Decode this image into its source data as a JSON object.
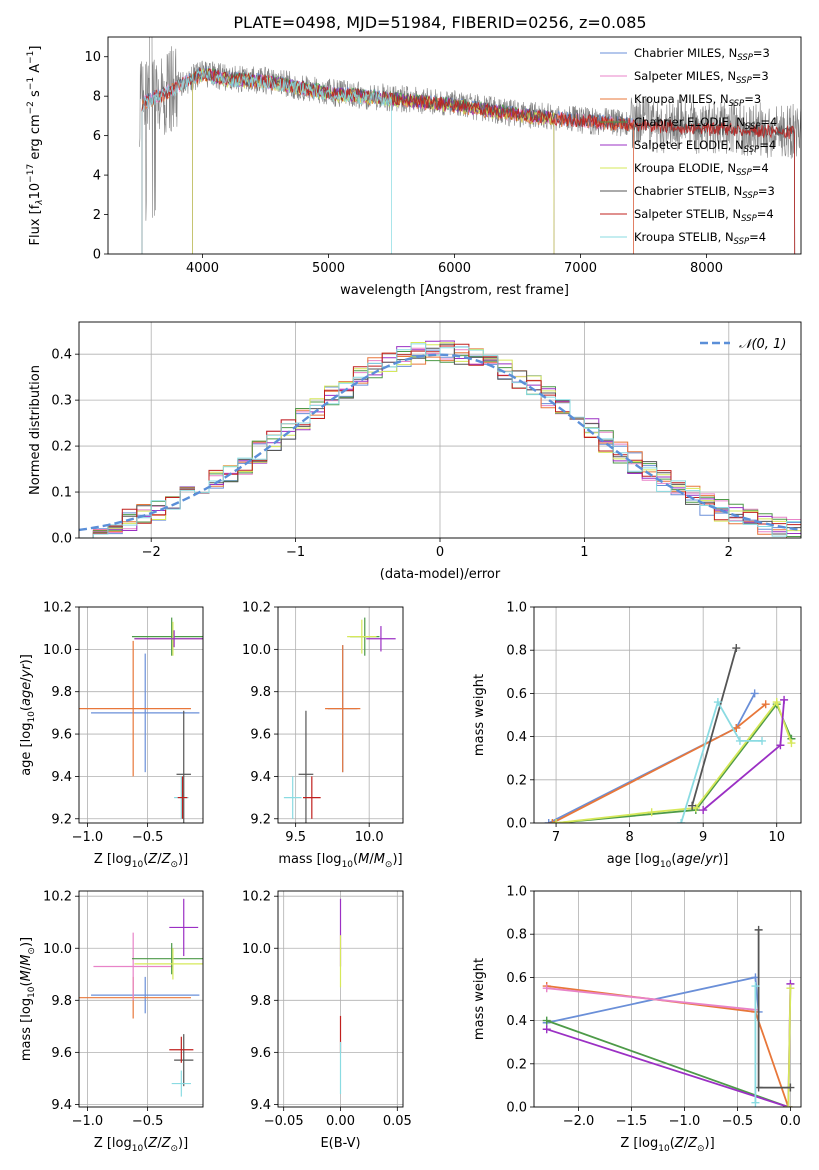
{
  "title": "PLATE=0498, MJD=51984, FIBERID=0256, z=0.085",
  "colors": {
    "Chabrier MILES": "#6a8fd8",
    "Salpeter MILES": "#e883c8",
    "Kroupa MILES": "#e8773a",
    "Chabrier ELODIE": "#4d9a48",
    "Salpeter ELODIE": "#9b30c4",
    "Kroupa ELODIE": "#d6e85a",
    "Chabrier STELIB": "#555555",
    "Salpeter STELIB": "#c0201e",
    "Kroupa STELIB": "#8adbe2",
    "normal": "#5b8fd8",
    "data": "#808080"
  },
  "chart_data": [
    {
      "type": "line",
      "xlabel": "wavelength [Angstrom, rest frame]",
      "ylabel_main": "Flux [f",
      "ylabel_sub": "λ",
      "ylabel_rest": "10",
      "ylabel_exp1": "−17",
      "ylabel_mid": " erg cm",
      "ylabel_exp2": "−2",
      "ylabel_mid2": " s",
      "ylabel_exp3": "−1",
      "ylabel_mid3": " A",
      "ylabel_exp4": "−1",
      "ylabel_end": "]",
      "xlim": [
        3250,
        8750
      ],
      "ylim": [
        0,
        11
      ],
      "xticks": [
        "4000",
        "5000",
        "6000",
        "7000",
        "8000"
      ],
      "yticks": [
        "0",
        "2",
        "4",
        "6",
        "8",
        "10"
      ],
      "legend": [
        {
          "name": "Chabrier MILES",
          "nssp": "3"
        },
        {
          "name": "Salpeter MILES",
          "nssp": "3"
        },
        {
          "name": "Kroupa MILES",
          "nssp": "3"
        },
        {
          "name": "Chabrier ELODIE",
          "nssp": "4"
        },
        {
          "name": "Salpeter ELODIE",
          "nssp": "4"
        },
        {
          "name": "Kroupa ELODIE",
          "nssp": "4"
        },
        {
          "name": "Chabrier STELIB",
          "nssp": "3"
        },
        {
          "name": "Salpeter STELIB",
          "nssp": "4"
        },
        {
          "name": "Kroupa STELIB",
          "nssp": "4"
        }
      ],
      "legend_prefix": "N",
      "legend_sub": "SSP",
      "continuum": [
        [
          3500,
          7.6
        ],
        [
          3700,
          8.2
        ],
        [
          4000,
          9.2
        ],
        [
          4200,
          8.9
        ],
        [
          4500,
          8.8
        ],
        [
          5000,
          8.2
        ],
        [
          5500,
          7.9
        ],
        [
          6000,
          7.6
        ],
        [
          6500,
          7.1
        ],
        [
          7000,
          6.8
        ],
        [
          7400,
          6.6
        ],
        [
          8000,
          6.4
        ],
        [
          8750,
          6.2
        ]
      ]
    },
    {
      "type": "bar",
      "xlabel": "(data-model)/error",
      "ylabel": "Normed distribution",
      "xlim": [
        -2.5,
        2.5
      ],
      "ylim": [
        0,
        0.47
      ],
      "xticks": [
        "−2",
        "−1",
        "0",
        "1",
        "2"
      ],
      "yticks": [
        "0.0",
        "0.1",
        "0.2",
        "0.3",
        "0.4"
      ],
      "legend": "𝒩(0, 1)",
      "bin_width": 0.1,
      "bins_start": -2.5
    },
    {
      "type": "scatter",
      "xlabel": "Z [log10(Z/Z⊙)]",
      "ylabel": "age  [log10(age/yr)]",
      "xlim": [
        -1.07,
        -0.04
      ],
      "ylim": [
        9.18,
        10.2
      ],
      "xticks": [
        "−1.0",
        "−0.5"
      ],
      "yticks": [
        "9.2",
        "9.4",
        "9.6",
        "9.8",
        "10.0",
        "10.2"
      ],
      "points": [
        {
          "m": "Chabrier MILES",
          "x": -0.52,
          "y": 9.7,
          "ex": 0.45,
          "ey": 0.28
        },
        {
          "m": "Kroupa MILES",
          "x": -0.62,
          "y": 9.72,
          "ex": 0.48,
          "ey": 0.32
        },
        {
          "m": "Chabrier ELODIE",
          "x": -0.3,
          "y": 10.06,
          "ex": 0.33,
          "ey": 0.09
        },
        {
          "m": "Kroupa ELODIE",
          "x": -0.29,
          "y": 10.05,
          "ex": 0.32,
          "ey": 0.08
        },
        {
          "m": "Salpeter ELODIE",
          "x": -0.28,
          "y": 10.05,
          "ex": 0.33,
          "ey": 0.04
        },
        {
          "m": "Chabrier STELIB",
          "x": -0.2,
          "y": 9.41,
          "ex": 0.06,
          "ey": 0.3
        },
        {
          "m": "Kroupa STELIB",
          "x": -0.22,
          "y": 9.3,
          "ex": 0.06,
          "ey": 0.1
        },
        {
          "m": "Salpeter STELIB",
          "x": -0.21,
          "y": 9.3,
          "ex": 0.04,
          "ey": 0.1
        }
      ]
    },
    {
      "type": "scatter",
      "xlabel": "mass [log10(M/M⊙)]",
      "ylabel": "",
      "xlim": [
        9.38,
        10.23
      ],
      "ylim": [
        9.18,
        10.2
      ],
      "xticks": [
        "9.5",
        "10.0"
      ],
      "yticks": [
        "9.2",
        "9.4",
        "9.6",
        "9.8",
        "10.0",
        "10.2"
      ],
      "points": [
        {
          "m": "Chabrier MILES",
          "x": 9.82,
          "y": 9.72,
          "ex": 0.1,
          "ey": 0.3
        },
        {
          "m": "Kroupa MILES",
          "x": 9.82,
          "y": 9.72,
          "ex": 0.12,
          "ey": 0.3
        },
        {
          "m": "Chabrier ELODIE",
          "x": 9.97,
          "y": 10.06,
          "ex": 0.1,
          "ey": 0.09
        },
        {
          "m": "Kroupa ELODIE",
          "x": 9.95,
          "y": 10.06,
          "ex": 0.1,
          "ey": 0.08
        },
        {
          "m": "Salpeter ELODIE",
          "x": 10.08,
          "y": 10.05,
          "ex": 0.1,
          "ey": 0.06
        },
        {
          "m": "Chabrier STELIB",
          "x": 9.57,
          "y": 9.41,
          "ex": 0.05,
          "ey": 0.3
        },
        {
          "m": "Salpeter STELIB",
          "x": 9.61,
          "y": 9.3,
          "ex": 0.06,
          "ey": 0.1
        },
        {
          "m": "Kroupa STELIB",
          "x": 9.48,
          "y": 9.3,
          "ex": 0.06,
          "ey": 0.1
        }
      ]
    },
    {
      "type": "line",
      "xlabel": "age  [log10(age/yr)]",
      "ylabel": "mass weight",
      "xlim": [
        6.7,
        10.33
      ],
      "ylim": [
        0,
        1
      ],
      "xticks": [
        "7",
        "8",
        "9",
        "10"
      ],
      "yticks": [
        "0.0",
        "0.2",
        "0.4",
        "0.6",
        "0.8",
        "1.0"
      ],
      "series": [
        {
          "m": "Chabrier MILES",
          "pts": [
            [
              6.9,
              0.0
            ],
            [
              9.45,
              0.44
            ],
            [
              9.7,
              0.6
            ]
          ]
        },
        {
          "m": "Kroupa MILES",
          "pts": [
            [
              6.95,
              0.0
            ],
            [
              9.45,
              0.44
            ],
            [
              9.85,
              0.55
            ]
          ]
        },
        {
          "m": "Chabrier ELODIE",
          "pts": [
            [
              7.0,
              0.0
            ],
            [
              8.9,
              0.06
            ],
            [
              10.0,
              0.55
            ],
            [
              10.2,
              0.39
            ]
          ]
        },
        {
          "m": "Kroupa ELODIE",
          "pts": [
            [
              7.0,
              0.0
            ],
            [
              8.3,
              0.05
            ],
            [
              8.9,
              0.07
            ],
            [
              10.0,
              0.56
            ],
            [
              10.2,
              0.37
            ]
          ]
        },
        {
          "m": "Salpeter ELODIE",
          "pts": [
            [
              9.0,
              0.06
            ],
            [
              10.05,
              0.36
            ],
            [
              10.1,
              0.57
            ]
          ]
        },
        {
          "m": "Chabrier STELIB",
          "pts": [
            [
              8.85,
              0.08
            ],
            [
              9.45,
              0.81
            ]
          ]
        },
        {
          "m": "Kroupa STELIB",
          "pts": [
            [
              8.7,
              0.0
            ],
            [
              9.2,
              0.56
            ],
            [
              9.5,
              0.38
            ],
            [
              9.8,
              0.38
            ]
          ]
        }
      ]
    },
    {
      "type": "scatter",
      "xlabel": "Z [log10(Z/Z⊙)]",
      "ylabel": "mass [log10(M/M⊙)]",
      "xlim": [
        -1.07,
        -0.04
      ],
      "ylim": [
        9.39,
        10.22
      ],
      "xticks": [
        "−1.0",
        "−0.5"
      ],
      "yticks": [
        "9.4",
        "9.6",
        "9.8",
        "10.0",
        "10.2"
      ],
      "points": [
        {
          "m": "Chabrier MILES",
          "x": -0.52,
          "y": 9.82,
          "ex": 0.45,
          "ey": 0.07
        },
        {
          "m": "Kroupa MILES",
          "x": -0.62,
          "y": 9.81,
          "ex": 0.48,
          "ey": 0.08
        },
        {
          "m": "Salpeter MILES",
          "x": -0.62,
          "y": 9.93,
          "ex": 0.33,
          "ey": 0.13
        },
        {
          "m": "Chabrier ELODIE",
          "x": -0.3,
          "y": 9.96,
          "ex": 0.33,
          "ey": 0.06
        },
        {
          "m": "Kroupa ELODIE",
          "x": -0.29,
          "y": 9.94,
          "ex": 0.32,
          "ey": 0.06
        },
        {
          "m": "Salpeter ELODIE",
          "x": -0.2,
          "y": 10.08,
          "ex": 0.12,
          "ey": 0.11
        },
        {
          "m": "Chabrier STELIB",
          "x": -0.2,
          "y": 9.57,
          "ex": 0.08,
          "ey": 0.1
        },
        {
          "m": "Salpeter STELIB",
          "x": -0.22,
          "y": 9.61,
          "ex": 0.1,
          "ey": 0.05
        },
        {
          "m": "Kroupa STELIB",
          "x": -0.22,
          "y": 9.48,
          "ex": 0.08,
          "ey": 0.05
        }
      ]
    },
    {
      "type": "scatter",
      "xlabel": "E(B-V)",
      "ylabel": "",
      "xlim": [
        -0.055,
        0.055
      ],
      "ylim": [
        9.39,
        10.22
      ],
      "xticks": [
        "−0.05",
        "0.00",
        "0.05"
      ],
      "yticks": [
        "9.4",
        "9.6",
        "9.8",
        "10.0",
        "10.2"
      ],
      "points": [
        {
          "m": "Salpeter ELODIE",
          "x": 0.0,
          "y": 10.06,
          "ex": 0.0,
          "ey": 0.13
        },
        {
          "m": "Kroupa ELODIE",
          "x": 0.0,
          "y": 9.95,
          "ex": 0.0,
          "ey": 0.1
        },
        {
          "m": "Salpeter STELIB",
          "x": 0.0,
          "y": 9.67,
          "ex": 0.0,
          "ey": 0.07
        },
        {
          "m": "Kroupa STELIB",
          "x": 0.0,
          "y": 9.54,
          "ex": 0.0,
          "ey": 0.1
        }
      ]
    },
    {
      "type": "line",
      "xlabel": "Z [log10(Z/Z⊙)]",
      "ylabel": "mass weight",
      "xlim": [
        -2.42,
        0.1
      ],
      "ylim": [
        0,
        1
      ],
      "xticks": [
        "−2.0",
        "−1.5",
        "−1.0",
        "−0.5",
        "0.0"
      ],
      "yticks": [
        "0.0",
        "0.2",
        "0.4",
        "0.6",
        "0.8",
        "1.0"
      ],
      "series": [
        {
          "m": "Chabrier MILES",
          "pts": [
            [
              -2.3,
              0.39
            ],
            [
              -0.33,
              0.6
            ],
            [
              -0.3,
              0.44
            ]
          ]
        },
        {
          "m": "Kroupa MILES",
          "pts": [
            [
              -2.3,
              0.56
            ],
            [
              -0.33,
              0.44
            ],
            [
              -0.02,
              0.0
            ]
          ]
        },
        {
          "m": "Salpeter MILES",
          "pts": [
            [
              -2.3,
              0.55
            ],
            [
              -0.33,
              0.45
            ]
          ]
        },
        {
          "m": "Chabrier ELODIE",
          "pts": [
            [
              -2.3,
              0.4
            ],
            [
              -0.02,
              0.0
            ]
          ]
        },
        {
          "m": "Salpeter ELODIE",
          "pts": [
            [
              -2.3,
              0.36
            ],
            [
              -0.02,
              0.0
            ],
            [
              0.0,
              0.57
            ]
          ]
        },
        {
          "m": "Kroupa ELODIE",
          "pts": [
            [
              -0.02,
              0.0
            ],
            [
              0.0,
              0.55
            ]
          ]
        },
        {
          "m": "Chabrier STELIB",
          "pts": [
            [
              -0.3,
              0.82
            ],
            [
              -0.3,
              0.09
            ],
            [
              0.0,
              0.09
            ]
          ]
        },
        {
          "m": "Kroupa STELIB",
          "pts": [
            [
              -0.33,
              0.56
            ],
            [
              -0.33,
              0.02
            ]
          ]
        }
      ]
    }
  ]
}
